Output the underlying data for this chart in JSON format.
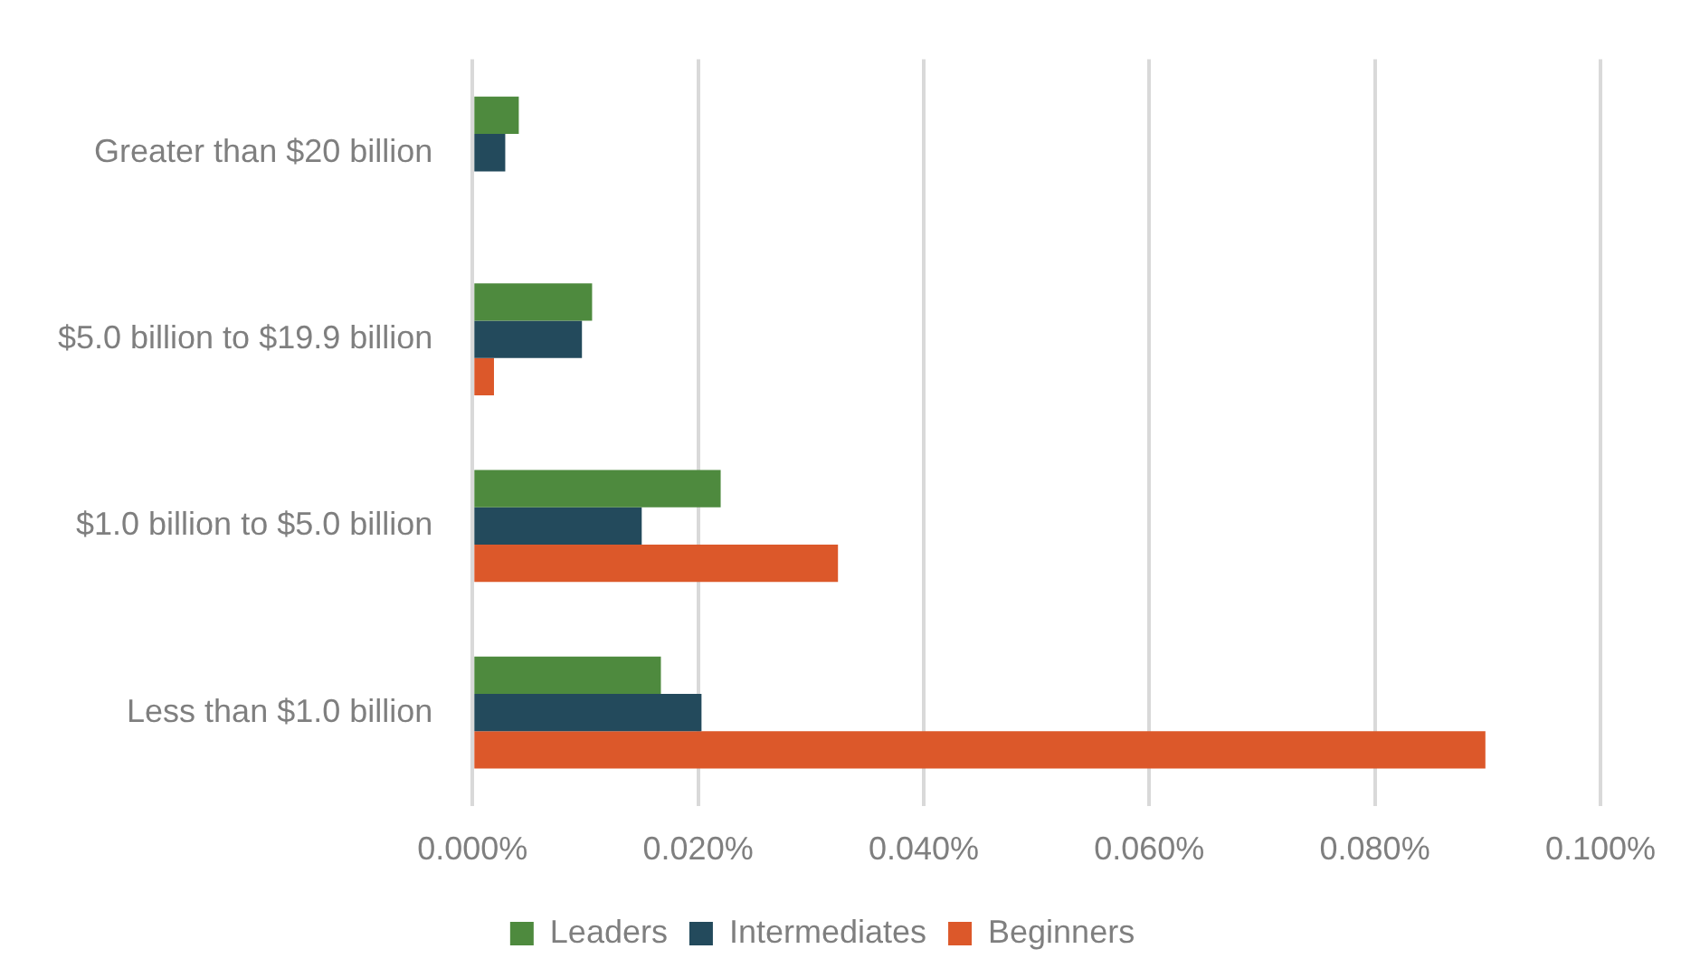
{
  "chart_data": {
    "type": "bar",
    "orientation": "horizontal",
    "categories": [
      "Greater than $20 billion",
      "$5.0 billion to $19.9 billion",
      "$1.0 billion to $5.0 billion",
      "Less than $1.0 billion"
    ],
    "series": [
      {
        "name": "Leaders",
        "color": "#4e8a3e",
        "values": [
          0.0041,
          0.0106,
          0.022,
          0.0167
        ]
      },
      {
        "name": "Intermediates",
        "color": "#234a5c",
        "values": [
          0.0029,
          0.0097,
          0.015,
          0.0203
        ]
      },
      {
        "name": "Beginners",
        "color": "#dc582a",
        "values": [
          0,
          0.0019,
          0.0324,
          0.0898
        ]
      }
    ],
    "xlim": [
      0,
      0.1
    ],
    "xticks": [
      {
        "value": 0,
        "label": "0.000%"
      },
      {
        "value": 0.02,
        "label": "0.020%"
      },
      {
        "value": 0.04,
        "label": "0.040%"
      },
      {
        "value": 0.06,
        "label": "0.060%"
      },
      {
        "value": 0.08,
        "label": "0.080%"
      },
      {
        "value": 0.1,
        "label": "0.100%"
      }
    ],
    "grid": "x",
    "legend": "bottom"
  }
}
